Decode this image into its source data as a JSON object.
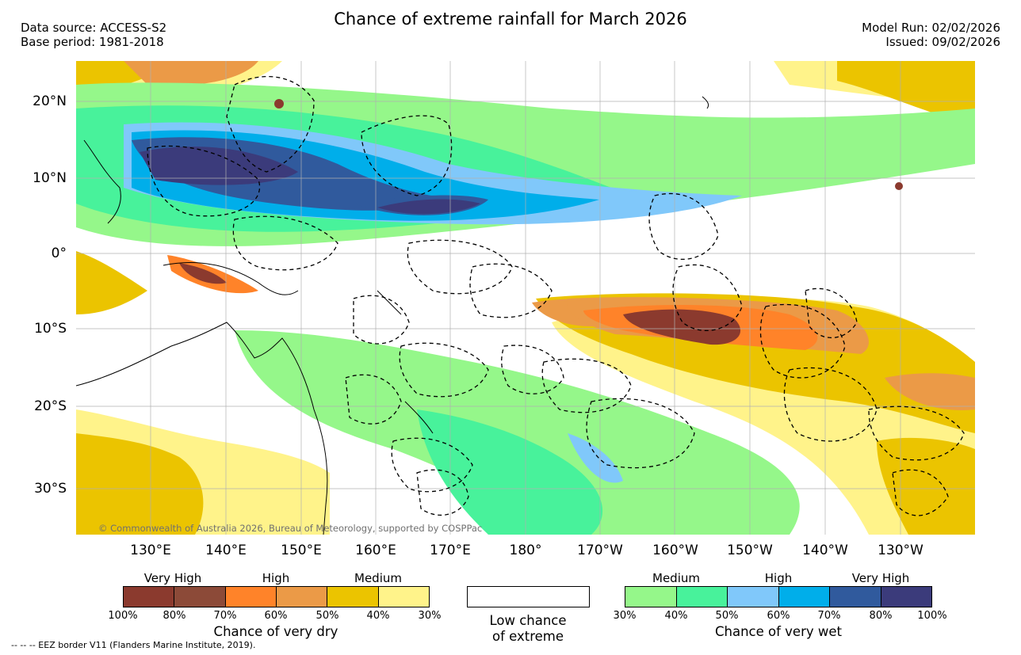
{
  "title": "Chance of extreme rainfall for March 2026",
  "header": {
    "data_source": "Data source: ACCESS-S2",
    "base_period": "Base period: 1981-2018",
    "model_run": "Model Run: 02/02/2026",
    "issued": "Issued: 09/02/2026"
  },
  "map": {
    "lat_labels": [
      "20°N",
      "10°N",
      "0°",
      "10°S",
      "20°S",
      "30°S"
    ],
    "lon_labels": [
      "130°E",
      "140°E",
      "150°E",
      "160°E",
      "170°E",
      "180°",
      "170°W",
      "160°W",
      "150°W",
      "140°W",
      "130°W"
    ],
    "copyright": "© Commonwealth of Australia 2026, Bureau of Meteorology, supported by COSPPac"
  },
  "legend": {
    "dry": {
      "categories": [
        "Very High",
        "High",
        "Medium"
      ],
      "ticks": [
        "100%",
        "80%",
        "70%",
        "60%",
        "50%",
        "40%",
        "30%"
      ],
      "caption": "Chance of very dry",
      "colors": [
        "#8b3a2e",
        "#8c4a38",
        "#ff8329",
        "#eb9a47",
        "#ebc400",
        "#fff38a"
      ]
    },
    "low": {
      "caption_line1": "Low chance",
      "caption_line2": "of extreme"
    },
    "wet": {
      "categories": [
        "Medium",
        "High",
        "Very High"
      ],
      "ticks": [
        "30%",
        "40%",
        "50%",
        "60%",
        "70%",
        "80%",
        "100%"
      ],
      "caption": "Chance of very wet",
      "colors": [
        "#95f78a",
        "#48f29b",
        "#80c8fa",
        "#00aeea",
        "#305a9d",
        "#3b3b7b"
      ]
    }
  },
  "footnote": "-- -- -- EEZ border V11 (Flanders Marine Institute, 2019)."
}
